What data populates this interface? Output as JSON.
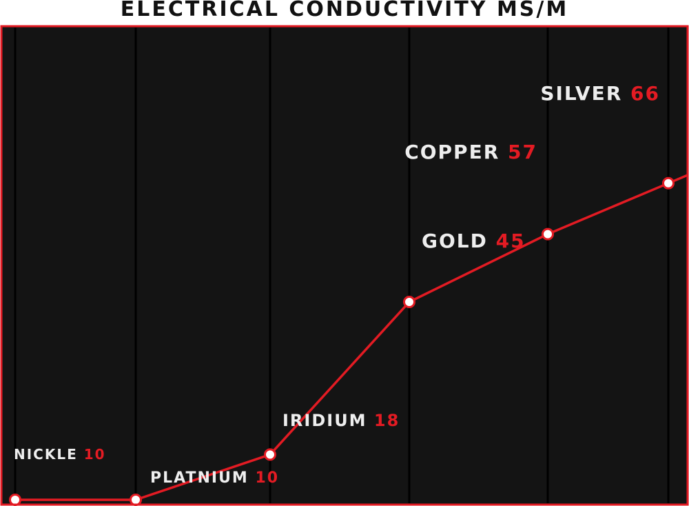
{
  "chart_title": "ELECTRICAL CONDUCTIVITY MS/M",
  "colors": {
    "background": "#141414",
    "frame": "#e31b23",
    "line": "#e31b23",
    "label": "#eeeeee",
    "value": "#e31b23",
    "gridline": "#000000",
    "marker_fill": "#ffffff"
  },
  "chart_data": {
    "type": "line",
    "title": "ELECTRICAL CONDUCTIVITY MS/M",
    "xlabel": "",
    "ylabel": "",
    "grid": true,
    "categories": [
      "NICKLE",
      "PLATNIUM",
      "IRIDIUM",
      "GOLD",
      "COPPER",
      "SILVER"
    ],
    "values": [
      10,
      10,
      18,
      45,
      57,
      66
    ],
    "value_labels": [
      "10",
      "10",
      "18",
      "45",
      "57",
      "66"
    ]
  }
}
